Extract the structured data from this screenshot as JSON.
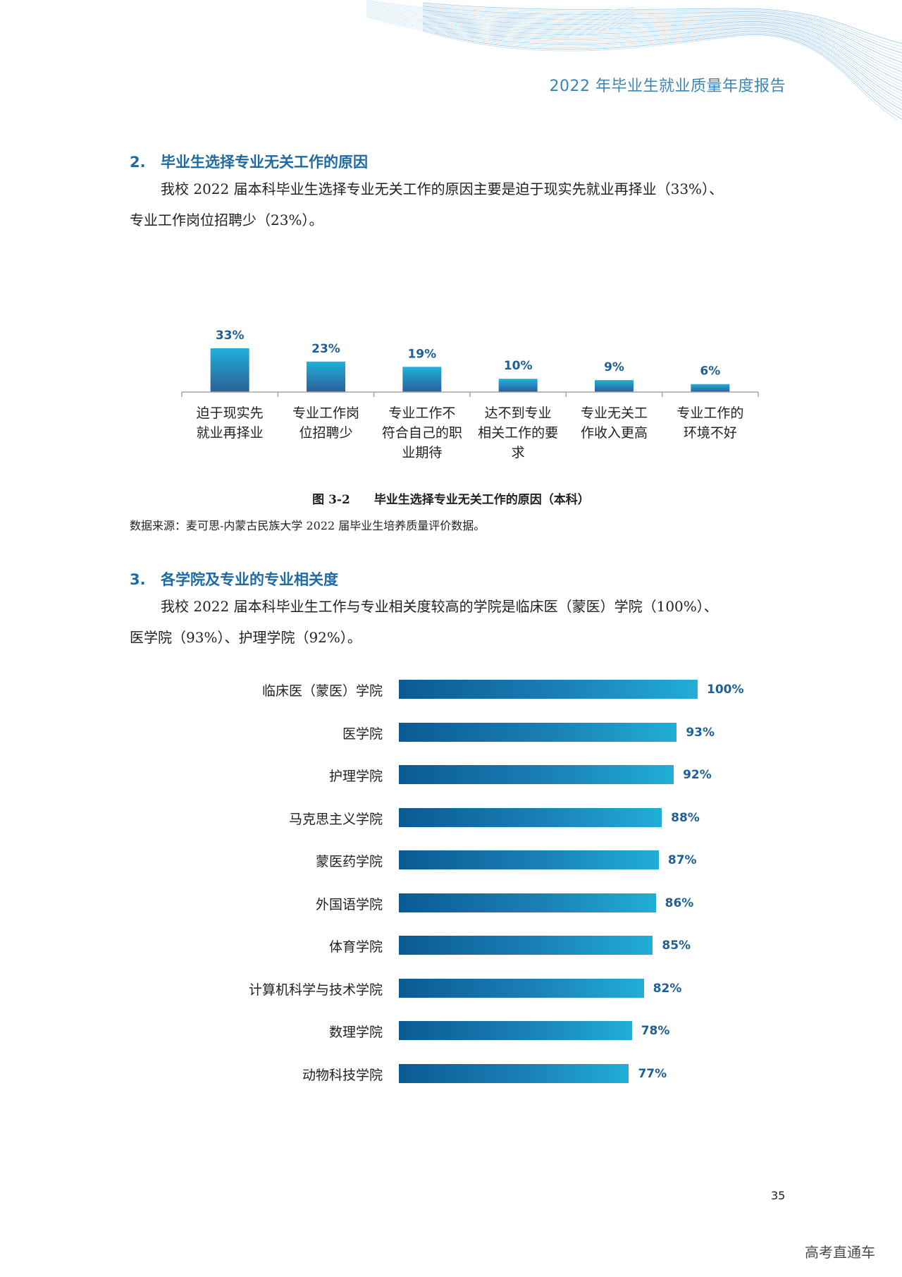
{
  "header": {
    "report_title": "2022 年毕业生就业质量年度报告"
  },
  "section2": {
    "number": "2.",
    "heading": "毕业生选择专业无关工作的原因",
    "paragraph_line1": "我校 2022 届本科毕业生选择专业无关工作的原因主要是迫于现实先就业再择业（33%）、",
    "paragraph_line2": "专业工作岗位招聘少（23%）。"
  },
  "figure_3_2": {
    "number": "图 3-2",
    "caption": "毕业生选择专业无关工作的原因（本科）",
    "source": "数据来源：麦可思-内蒙古民族大学 2022 届毕业生培养质量评价数据。"
  },
  "section3": {
    "number": "3.",
    "heading": "各学院及专业的专业相关度",
    "paragraph_line1": "我校 2022 届本科毕业生工作与专业相关度较高的学院是临床医（蒙医）学院（100%）、",
    "paragraph_line2": "医学院（93%）、护理学院（92%）。"
  },
  "chart_data": [
    {
      "type": "bar",
      "title": "",
      "categories": [
        [
          "迫于现实先",
          "就业再择业"
        ],
        [
          "专业工作岗",
          "位招聘少"
        ],
        [
          "专业工作不",
          "符合自己的职",
          "业期待"
        ],
        [
          "达不到专业",
          "相关工作的要",
          "求"
        ],
        [
          "专业无关工",
          "作收入更高"
        ],
        [
          "专业工作的",
          "环境不好"
        ]
      ],
      "values": [
        33,
        23,
        19,
        10,
        9,
        6
      ],
      "value_labels": [
        "33%",
        "23%",
        "19%",
        "10%",
        "9%",
        "6%"
      ],
      "ylim": [
        0,
        33
      ],
      "grid": false,
      "colors": {
        "top": "#1eb1da",
        "bottom": "#2c5f98",
        "label": "#1f5f96",
        "axis": "#a6a6a6"
      }
    },
    {
      "type": "bar",
      "orientation": "horizontal",
      "title": "",
      "categories": [
        "临床医（蒙医）学院",
        "医学院",
        "护理学院",
        "马克思主义学院",
        "蒙医药学院",
        "外国语学院",
        "体育学院",
        "计算机科学与技术学院",
        "数理学院",
        "动物科技学院"
      ],
      "values": [
        100,
        93,
        92,
        88,
        87,
        86,
        85,
        82,
        78,
        77
      ],
      "value_labels": [
        "100%",
        "93%",
        "92%",
        "88%",
        "87%",
        "86%",
        "85%",
        "82%",
        "78%",
        "77%"
      ],
      "xlim": [
        0,
        100
      ],
      "grid": false,
      "colors": {
        "left": "#0b5a94",
        "right": "#21aed6",
        "label": "#1f5f96"
      }
    }
  ],
  "footer": {
    "page_number": "35",
    "watermark": "高考直通车"
  },
  "colors": {
    "accent": "#1f6aa5",
    "header_text": "#3a86b8"
  }
}
